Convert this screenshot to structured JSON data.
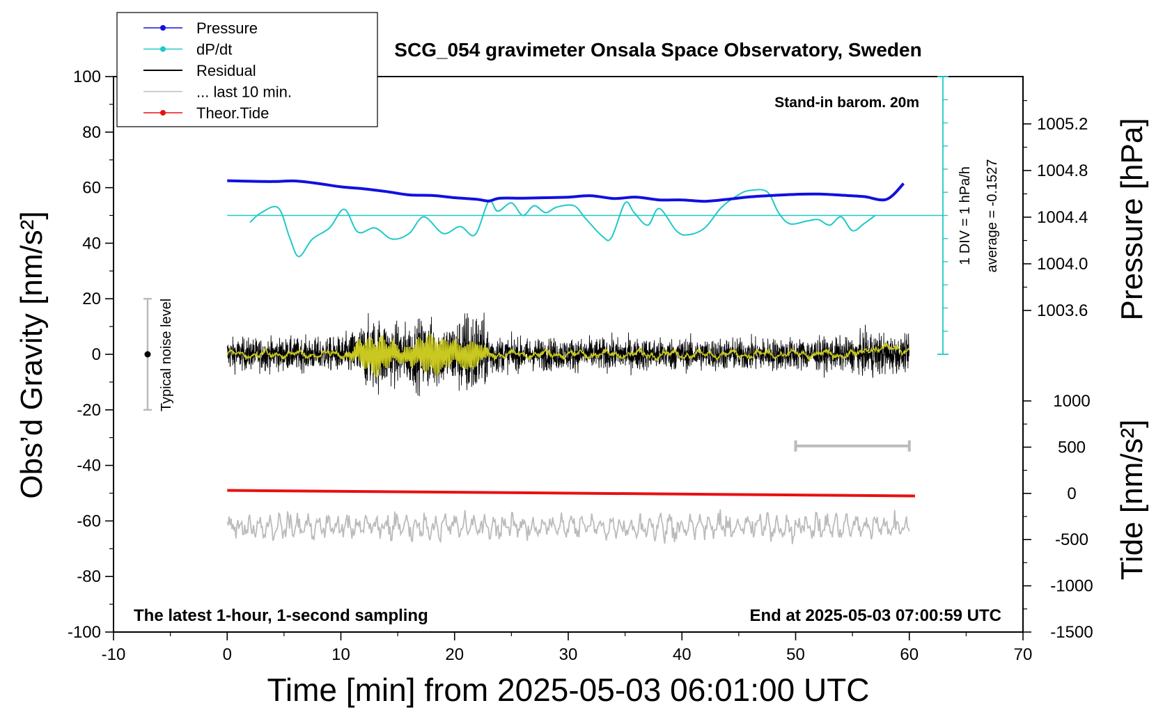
{
  "chart_data": {
    "type": "line",
    "title": "SCG_054 gravimeter Onsala Space Observatory, Sweden",
    "xlabel": "Time [min] from 2025-05-03 06:01:00 UTC",
    "ylabel_left": "Obs’d Gravity [nm/s²]",
    "ylabel_right_top": "Pressure [hPa]",
    "ylabel_right_bottom": "Tide [nm/s²]",
    "xlim": [
      -10,
      70
    ],
    "ylim": [
      -100,
      100
    ],
    "pressure_ylim": [
      1004.6,
      1005.6
    ],
    "pressure_ticks": [
      "1005.2",
      "1004.8",
      "1004.4",
      "1004.0",
      "1003.6"
    ],
    "tide_ylim": [
      -1500,
      1000
    ],
    "tide_ticks": [
      "1000",
      "500",
      "0",
      "-500",
      "-1000",
      "-1500"
    ],
    "x_ticks": [
      "-10",
      "0",
      "10",
      "20",
      "30",
      "40",
      "50",
      "60",
      "70"
    ],
    "y_ticks": [
      "100",
      "80",
      "60",
      "40",
      "20",
      "0",
      "-20",
      "-40",
      "-60",
      "-80",
      "-100"
    ],
    "annotations": {
      "stand_in": "Stand-in barom. 20m",
      "div_label": "1 DIV = 1 hPa/h",
      "average_label": "average = -0.1527",
      "noise_label": "Typical noise level",
      "bottom_left": "The latest 1-hour, 1-second sampling",
      "bottom_right": "End at 2025-05-03 07:00:59 UTC"
    },
    "legend": {
      "placement": "top-left",
      "entries": [
        "Pressure",
        "dP/dt",
        "Residual",
        "... last 10 min.",
        "Theor.Tide"
      ]
    },
    "grid": false,
    "colors": {
      "pressure": "#1010e0",
      "dpdt": "#20c8c8",
      "residual": "#000000",
      "smoothed": "#c8c820",
      "last10": "#bbbbbb",
      "tide": "#e81010"
    },
    "dpdt_baseline_y": 50,
    "noise_bar": {
      "x": -7,
      "y": 0,
      "low": -20,
      "high": 20
    },
    "last10_bar": {
      "x_start": 50,
      "x_end": 60,
      "y": -33
    },
    "series": [
      {
        "name": "Pressure",
        "x": [
          0,
          2,
          4,
          6,
          8,
          10,
          12,
          14,
          16,
          18,
          20,
          22,
          23,
          24,
          26,
          28,
          30,
          32,
          34,
          36,
          38,
          40,
          42,
          44,
          46,
          48,
          50,
          52,
          54,
          56,
          58,
          59.5
        ],
        "y": [
          62.5,
          62.3,
          62.2,
          62.4,
          61.5,
          60.3,
          59.6,
          58.6,
          57.4,
          57.2,
          56.4,
          55.8,
          55.2,
          56.2,
          56.2,
          56.4,
          56.6,
          57.1,
          56.1,
          56.6,
          55.6,
          55.6,
          55.1,
          55.8,
          56.7,
          57.2,
          57.6,
          57.7,
          57.3,
          56.8,
          55.8,
          61.5
        ]
      },
      {
        "name": "dP/dt",
        "x": [
          2,
          3,
          4.5,
          5.5,
          6.3,
          7.5,
          9,
          10.3,
          11.5,
          13,
          14.5,
          16,
          17.3,
          19,
          20.5,
          21.8,
          23,
          23.8,
          25,
          26,
          27,
          28,
          29,
          30.5,
          31.5,
          33,
          33.8,
          35,
          35.8,
          37,
          38,
          39.5,
          40.5,
          42,
          43.5,
          45,
          46,
          47.5,
          48.5,
          49.5,
          51,
          52,
          53,
          54,
          55,
          56,
          57
        ],
        "y": [
          47.5,
          51,
          52.7,
          42,
          35.2,
          41.5,
          45.5,
          52.2,
          44,
          45.5,
          41.5,
          43.5,
          49.5,
          43.5,
          46,
          43,
          55,
          51.5,
          54.5,
          50,
          53.5,
          51,
          53,
          53.5,
          49,
          42.5,
          42,
          54.5,
          51,
          46.5,
          52.5,
          44.5,
          43,
          45.5,
          53,
          57.5,
          59,
          58.5,
          51,
          47,
          48,
          48.5,
          46.5,
          49.5,
          44.5,
          47,
          50
        ]
      },
      {
        "name": "Theor.Tide",
        "x": [
          0,
          60.5
        ],
        "y": [
          -49,
          -51
        ]
      }
    ]
  }
}
